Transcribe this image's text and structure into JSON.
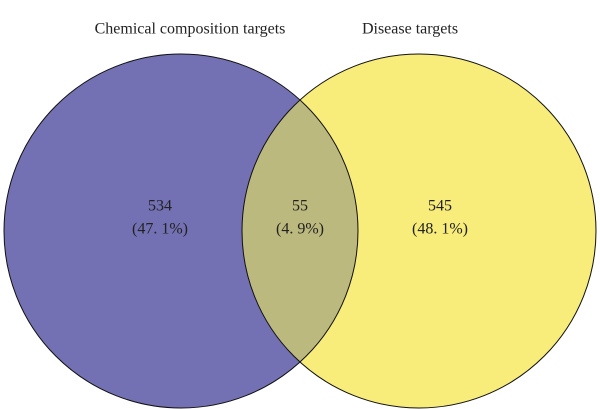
{
  "chart_data": {
    "type": "venn",
    "series": [
      {
        "name": "Chemical composition targets",
        "color": "#7371b3"
      },
      {
        "name": "Disease targets",
        "color": "#f8ec7b"
      }
    ],
    "overlap_color": "#bcb97f",
    "regions": [
      "Chemical composition targets",
      "both",
      "Disease targets"
    ],
    "values": [
      534,
      55,
      545
    ],
    "percent_labels": [
      "(47. 1%)",
      "(4. 9%)",
      "(48. 1%)"
    ]
  }
}
